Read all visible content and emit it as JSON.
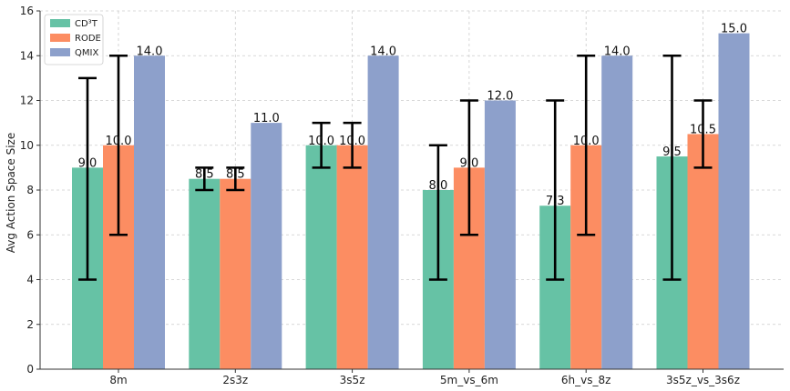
{
  "chart_data": {
    "type": "bar",
    "title": "",
    "xlabel": "",
    "ylabel": "Avg Action Space Size",
    "ylim": [
      0,
      16
    ],
    "yticks": [
      0,
      2,
      4,
      6,
      8,
      10,
      12,
      14,
      16
    ],
    "grid": true,
    "legend_position": "top-left",
    "categories": [
      "8m",
      "2s3z",
      "3s5z",
      "5m_vs_6m",
      "6h_vs_8z",
      "3s5z_vs_3s6z"
    ],
    "series": [
      {
        "name": "CD³T",
        "color": "#66c2a5",
        "values": [
          9.0,
          8.5,
          10.0,
          8.0,
          7.3,
          9.5
        ],
        "labels": [
          "9.0",
          "8.5",
          "10.0",
          "8.0",
          "7.3",
          "9.5"
        ],
        "error_low": [
          4,
          8,
          9,
          4,
          4,
          4
        ],
        "error_high": [
          13,
          9,
          11,
          10,
          12,
          14
        ]
      },
      {
        "name": "RODE",
        "color": "#fc8d62",
        "values": [
          10.0,
          8.5,
          10.0,
          9.0,
          10.0,
          10.5
        ],
        "labels": [
          "10.0",
          "8.5",
          "10.0",
          "9.0",
          "10.0",
          "10.5"
        ],
        "error_low": [
          6,
          8,
          9,
          6,
          6,
          9
        ],
        "error_high": [
          14,
          9,
          11,
          12,
          14,
          12
        ]
      },
      {
        "name": "QMIX",
        "color": "#8da0cb",
        "values": [
          14.0,
          11.0,
          14.0,
          12.0,
          14.0,
          15.0
        ],
        "labels": [
          "14.0",
          "11.0",
          "14.0",
          "12.0",
          "14.0",
          "15.0"
        ]
      }
    ]
  }
}
